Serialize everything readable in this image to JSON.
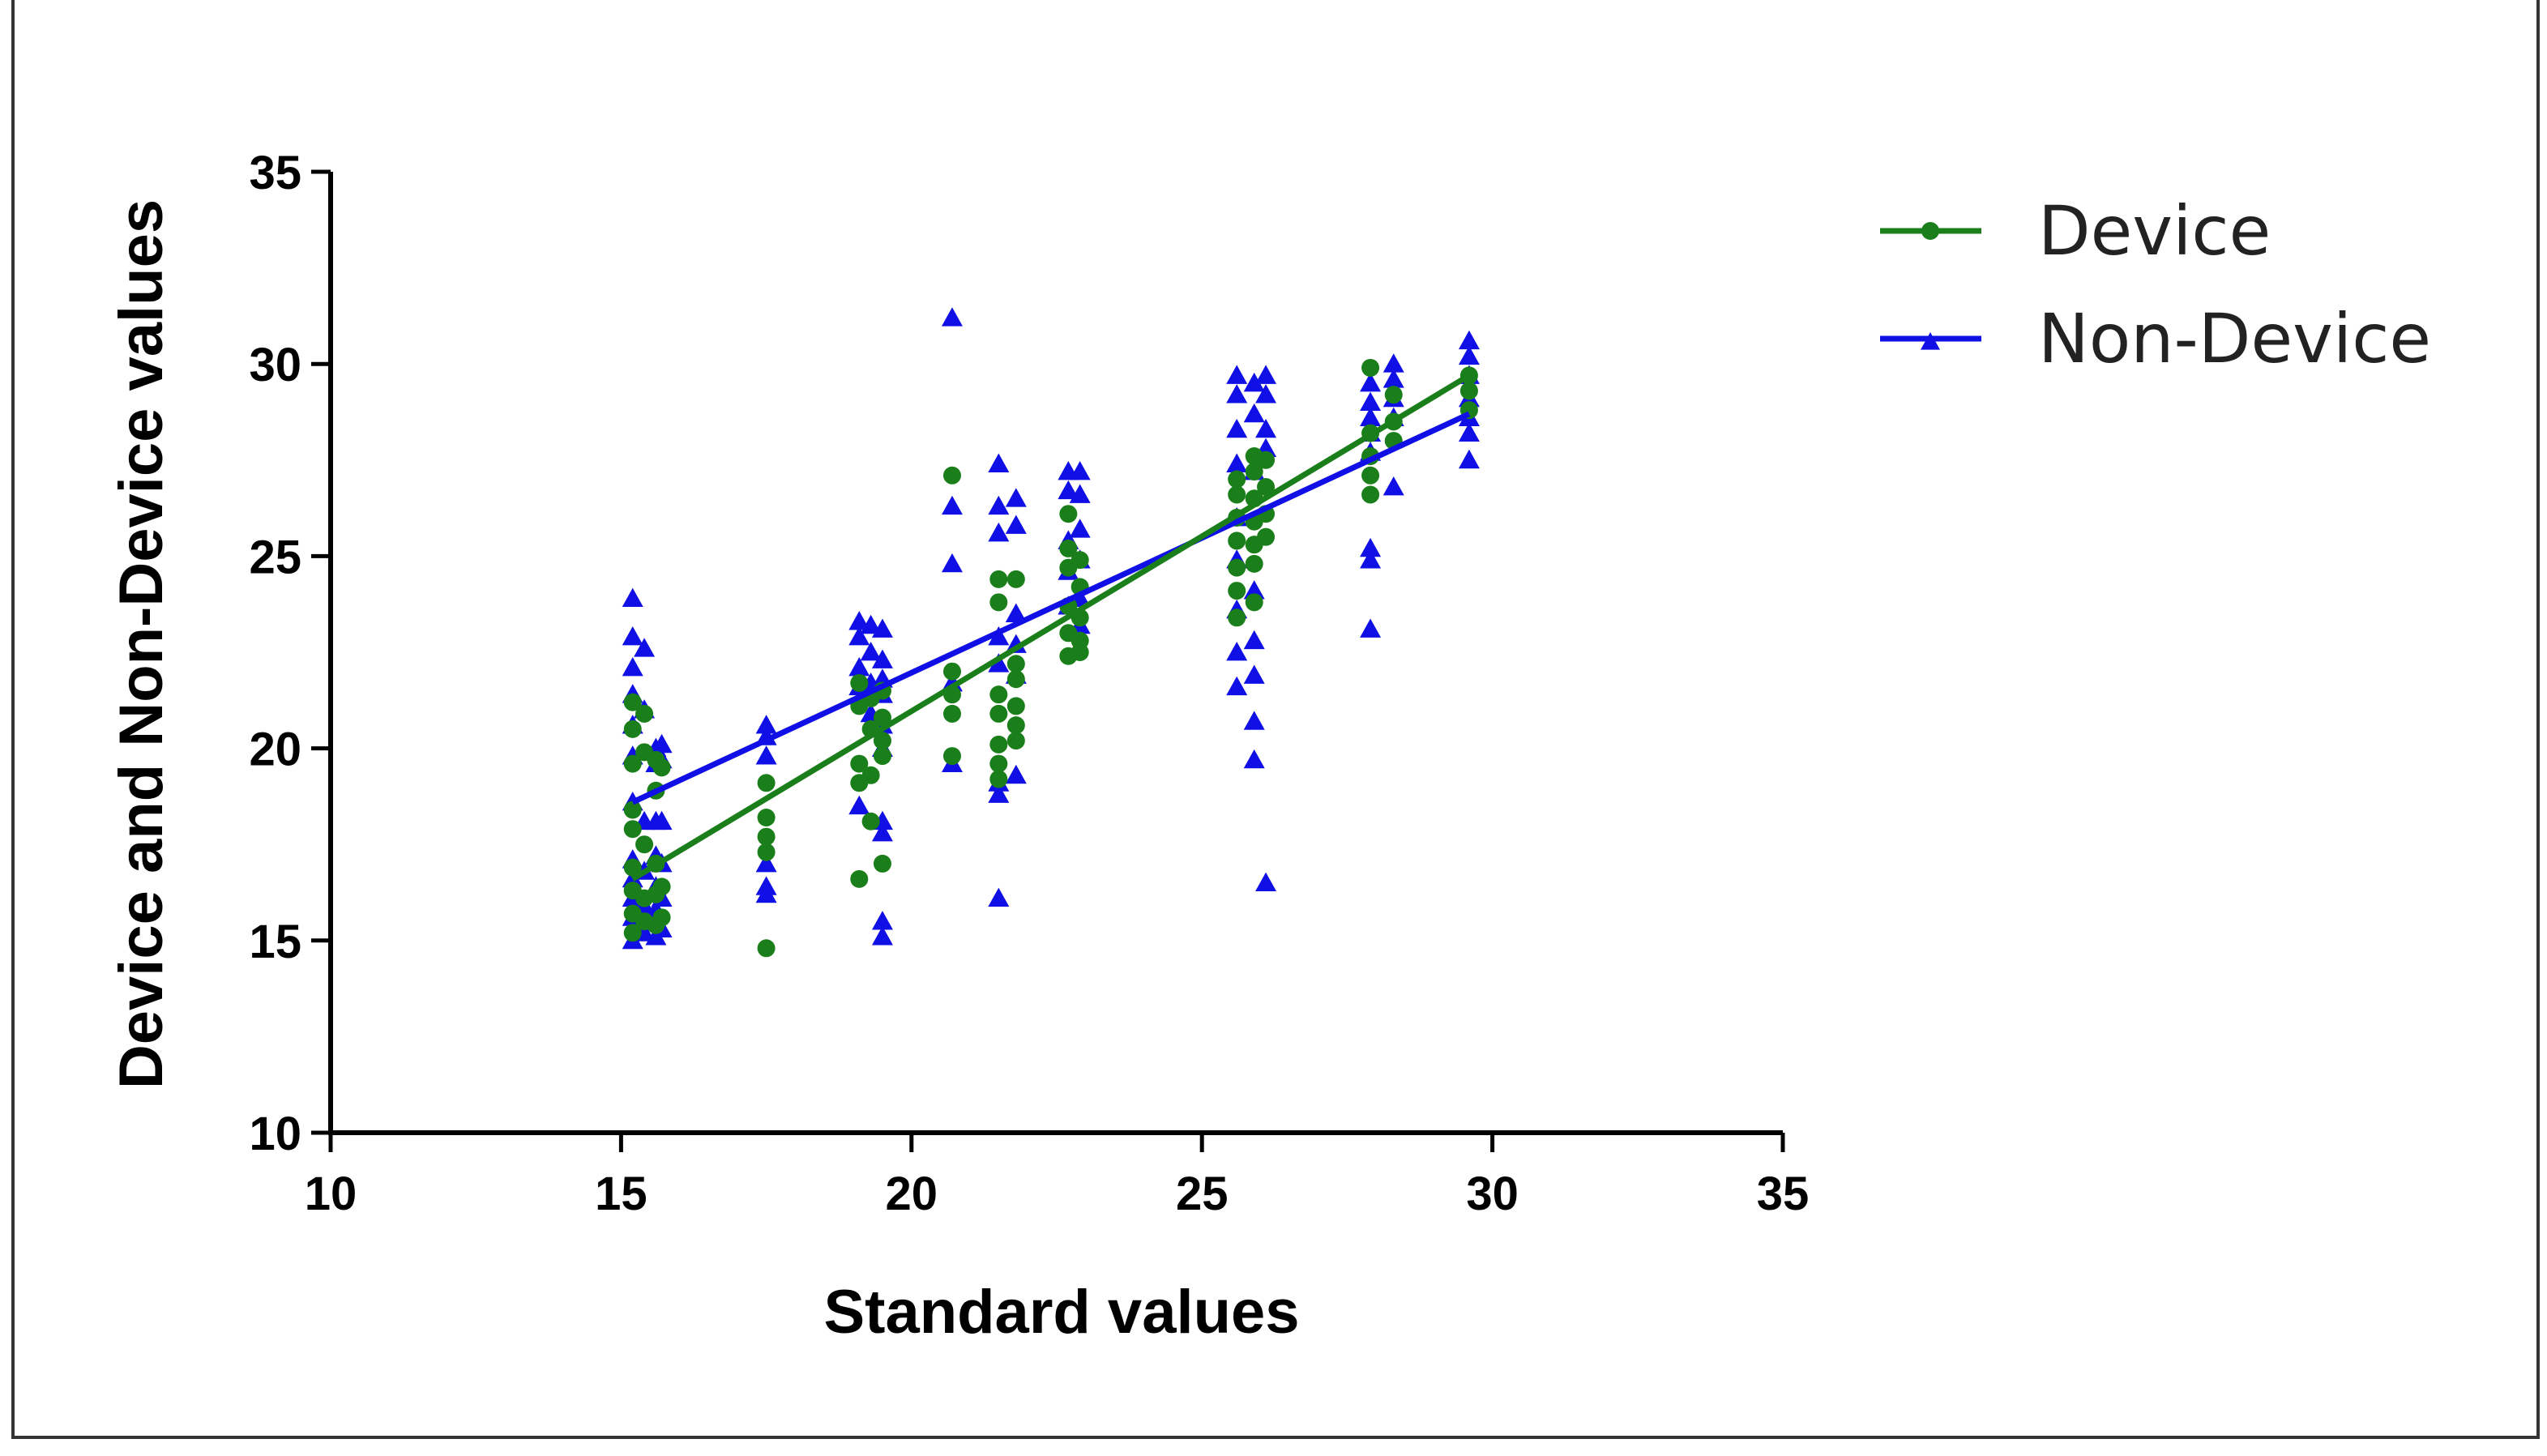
{
  "chart_data": {
    "type": "scatter",
    "title": "",
    "xlabel": "Standard values",
    "ylabel": "Device and Non-Device values",
    "xlim": [
      10,
      35
    ],
    "ylim": [
      10,
      35
    ],
    "xticks": [
      "10",
      "15",
      "20",
      "25",
      "30",
      "35"
    ],
    "yticks": [
      "10",
      "15",
      "20",
      "25",
      "30",
      "35"
    ],
    "grid": false,
    "legend_position": "top-right",
    "series": [
      {
        "name": "Device",
        "color": "#1a7f1a",
        "marker": "dot",
        "fit": {
          "x": [
            15.2,
            29.6
          ],
          "y": [
            16.6,
            29.7
          ]
        },
        "points": [
          [
            15.2,
            21.2
          ],
          [
            15.2,
            20.5
          ],
          [
            15.2,
            19.6
          ],
          [
            15.2,
            18.4
          ],
          [
            15.2,
            17.9
          ],
          [
            15.2,
            16.9
          ],
          [
            15.2,
            16.3
          ],
          [
            15.2,
            15.7
          ],
          [
            15.2,
            15.2
          ],
          [
            15.4,
            20.9
          ],
          [
            15.4,
            19.9
          ],
          [
            15.4,
            17.5
          ],
          [
            15.4,
            16.1
          ],
          [
            15.4,
            15.5
          ],
          [
            15.6,
            19.7
          ],
          [
            15.6,
            18.9
          ],
          [
            15.6,
            17.0
          ],
          [
            15.6,
            16.2
          ],
          [
            15.6,
            15.4
          ],
          [
            15.7,
            19.5
          ],
          [
            15.7,
            16.4
          ],
          [
            15.7,
            15.6
          ],
          [
            17.5,
            19.1
          ],
          [
            17.5,
            18.2
          ],
          [
            17.5,
            17.7
          ],
          [
            17.5,
            17.3
          ],
          [
            17.5,
            14.8
          ],
          [
            19.1,
            21.7
          ],
          [
            19.1,
            21.1
          ],
          [
            19.1,
            19.6
          ],
          [
            19.1,
            19.1
          ],
          [
            19.1,
            16.6
          ],
          [
            19.3,
            21.3
          ],
          [
            19.3,
            20.5
          ],
          [
            19.3,
            19.3
          ],
          [
            19.3,
            18.1
          ],
          [
            19.5,
            21.5
          ],
          [
            19.5,
            20.8
          ],
          [
            19.5,
            20.2
          ],
          [
            19.5,
            19.8
          ],
          [
            19.5,
            17.0
          ],
          [
            20.7,
            27.1
          ],
          [
            20.7,
            22.0
          ],
          [
            20.7,
            21.4
          ],
          [
            20.7,
            20.9
          ],
          [
            20.7,
            19.8
          ],
          [
            21.5,
            24.4
          ],
          [
            21.5,
            23.8
          ],
          [
            21.5,
            21.4
          ],
          [
            21.5,
            20.9
          ],
          [
            21.5,
            20.1
          ],
          [
            21.5,
            19.6
          ],
          [
            21.5,
            19.2
          ],
          [
            21.8,
            24.4
          ],
          [
            21.8,
            22.2
          ],
          [
            21.8,
            21.8
          ],
          [
            21.8,
            21.1
          ],
          [
            21.8,
            20.6
          ],
          [
            21.8,
            20.2
          ],
          [
            22.7,
            26.1
          ],
          [
            22.7,
            25.2
          ],
          [
            22.7,
            24.7
          ],
          [
            22.7,
            23.7
          ],
          [
            22.7,
            23.0
          ],
          [
            22.7,
            22.4
          ],
          [
            22.9,
            24.9
          ],
          [
            22.9,
            24.2
          ],
          [
            22.9,
            23.4
          ],
          [
            22.9,
            22.8
          ],
          [
            22.9,
            22.5
          ],
          [
            25.6,
            27.0
          ],
          [
            25.6,
            26.6
          ],
          [
            25.6,
            26.0
          ],
          [
            25.6,
            25.4
          ],
          [
            25.6,
            24.7
          ],
          [
            25.6,
            24.1
          ],
          [
            25.6,
            23.4
          ],
          [
            25.9,
            27.6
          ],
          [
            25.9,
            27.2
          ],
          [
            25.9,
            26.5
          ],
          [
            25.9,
            25.9
          ],
          [
            25.9,
            25.3
          ],
          [
            25.9,
            24.8
          ],
          [
            25.9,
            23.8
          ],
          [
            26.1,
            27.5
          ],
          [
            26.1,
            26.8
          ],
          [
            26.1,
            26.1
          ],
          [
            26.1,
            25.5
          ],
          [
            27.9,
            29.9
          ],
          [
            27.9,
            28.2
          ],
          [
            27.9,
            27.6
          ],
          [
            27.9,
            27.1
          ],
          [
            27.9,
            26.6
          ],
          [
            28.3,
            29.2
          ],
          [
            28.3,
            28.5
          ],
          [
            28.3,
            28.0
          ],
          [
            29.6,
            29.7
          ],
          [
            29.6,
            29.3
          ],
          [
            29.6,
            28.8
          ]
        ]
      },
      {
        "name": "Non-Device",
        "color": "#1010e6",
        "marker": "triangle",
        "fit": {
          "x": [
            15.2,
            29.6
          ],
          "y": [
            18.6,
            28.7
          ]
        },
        "points": [
          [
            15.2,
            23.9
          ],
          [
            15.2,
            22.9
          ],
          [
            15.2,
            22.1
          ],
          [
            15.2,
            21.4
          ],
          [
            15.2,
            20.6
          ],
          [
            15.2,
            19.8
          ],
          [
            15.2,
            18.6
          ],
          [
            15.2,
            17.1
          ],
          [
            15.2,
            16.6
          ],
          [
            15.2,
            16.1
          ],
          [
            15.2,
            15.6
          ],
          [
            15.2,
            15.0
          ],
          [
            15.4,
            22.6
          ],
          [
            15.4,
            21.0
          ],
          [
            15.4,
            18.1
          ],
          [
            15.4,
            16.8
          ],
          [
            15.4,
            15.9
          ],
          [
            15.4,
            15.2
          ],
          [
            15.6,
            20.0
          ],
          [
            15.6,
            19.6
          ],
          [
            15.6,
            18.1
          ],
          [
            15.6,
            17.2
          ],
          [
            15.6,
            16.4
          ],
          [
            15.6,
            15.8
          ],
          [
            15.6,
            15.1
          ],
          [
            15.7,
            20.1
          ],
          [
            15.7,
            19.7
          ],
          [
            15.7,
            18.1
          ],
          [
            15.7,
            17.0
          ],
          [
            15.7,
            16.1
          ],
          [
            15.7,
            15.3
          ],
          [
            17.5,
            20.6
          ],
          [
            17.5,
            20.3
          ],
          [
            17.5,
            19.8
          ],
          [
            17.5,
            17.0
          ],
          [
            17.5,
            16.4
          ],
          [
            17.5,
            16.2
          ],
          [
            19.1,
            23.3
          ],
          [
            19.1,
            22.9
          ],
          [
            19.1,
            22.1
          ],
          [
            19.1,
            21.6
          ],
          [
            19.1,
            18.5
          ],
          [
            19.3,
            23.2
          ],
          [
            19.3,
            22.5
          ],
          [
            19.3,
            21.7
          ],
          [
            19.3,
            20.9
          ],
          [
            19.5,
            23.1
          ],
          [
            19.5,
            22.3
          ],
          [
            19.5,
            21.8
          ],
          [
            19.5,
            21.4
          ],
          [
            19.5,
            20.6
          ],
          [
            19.5,
            20.0
          ],
          [
            19.5,
            18.1
          ],
          [
            19.5,
            17.8
          ],
          [
            19.5,
            15.5
          ],
          [
            19.5,
            15.1
          ],
          [
            20.7,
            31.2
          ],
          [
            20.7,
            26.3
          ],
          [
            20.7,
            24.8
          ],
          [
            20.7,
            21.7
          ],
          [
            20.7,
            19.6
          ],
          [
            21.5,
            27.4
          ],
          [
            21.5,
            26.3
          ],
          [
            21.5,
            25.6
          ],
          [
            21.5,
            22.9
          ],
          [
            21.5,
            22.2
          ],
          [
            21.5,
            19.1
          ],
          [
            21.5,
            18.8
          ],
          [
            21.5,
            16.1
          ],
          [
            21.8,
            26.5
          ],
          [
            21.8,
            25.8
          ],
          [
            21.8,
            23.5
          ],
          [
            21.8,
            22.7
          ],
          [
            21.8,
            21.9
          ],
          [
            21.8,
            19.3
          ],
          [
            22.7,
            27.2
          ],
          [
            22.7,
            26.7
          ],
          [
            22.7,
            25.4
          ],
          [
            22.7,
            24.6
          ],
          [
            22.7,
            23.7
          ],
          [
            22.9,
            27.2
          ],
          [
            22.9,
            26.6
          ],
          [
            22.9,
            25.7
          ],
          [
            22.9,
            24.9
          ],
          [
            22.9,
            23.9
          ],
          [
            22.9,
            23.2
          ],
          [
            25.6,
            29.7
          ],
          [
            25.6,
            29.2
          ],
          [
            25.6,
            28.3
          ],
          [
            25.6,
            27.4
          ],
          [
            25.6,
            26.0
          ],
          [
            25.6,
            24.9
          ],
          [
            25.6,
            23.6
          ],
          [
            25.6,
            22.5
          ],
          [
            25.6,
            21.6
          ],
          [
            25.9,
            29.5
          ],
          [
            25.9,
            28.7
          ],
          [
            25.9,
            27.2
          ],
          [
            25.9,
            24.1
          ],
          [
            25.9,
            22.8
          ],
          [
            25.9,
            21.9
          ],
          [
            25.9,
            20.7
          ],
          [
            25.9,
            19.7
          ],
          [
            26.1,
            29.7
          ],
          [
            26.1,
            29.2
          ],
          [
            26.1,
            28.3
          ],
          [
            26.1,
            27.8
          ],
          [
            26.1,
            16.5
          ],
          [
            27.9,
            29.5
          ],
          [
            27.9,
            29.0
          ],
          [
            27.9,
            28.6
          ],
          [
            27.9,
            28.2
          ],
          [
            27.9,
            27.7
          ],
          [
            27.9,
            25.2
          ],
          [
            27.9,
            24.9
          ],
          [
            27.9,
            23.1
          ],
          [
            28.3,
            30.0
          ],
          [
            28.3,
            29.6
          ],
          [
            28.3,
            29.1
          ],
          [
            28.3,
            28.6
          ],
          [
            28.3,
            26.8
          ],
          [
            29.6,
            30.6
          ],
          [
            29.6,
            30.2
          ],
          [
            29.6,
            29.7
          ],
          [
            29.6,
            29.1
          ],
          [
            29.6,
            28.6
          ],
          [
            29.6,
            28.2
          ],
          [
            29.6,
            27.5
          ]
        ]
      }
    ]
  }
}
